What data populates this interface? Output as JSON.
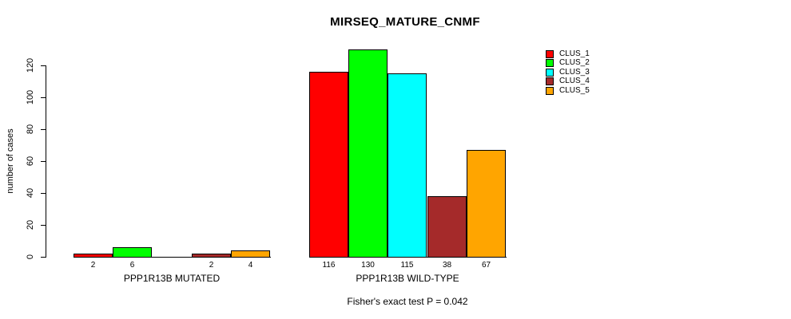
{
  "chart_data": {
    "type": "bar",
    "title": "MIRSEQ_MATURE_CNMF",
    "ylabel": "number of cases",
    "yticks": [
      0,
      20,
      40,
      60,
      80,
      100,
      120
    ],
    "ylim": [
      0,
      130
    ],
    "grid": false,
    "legend": {
      "position": "top-right",
      "entries": [
        {
          "label": "CLUS_1",
          "color": "#FF0000"
        },
        {
          "label": "CLUS_2",
          "color": "#00FF00"
        },
        {
          "label": "CLUS_3",
          "color": "#00FFFF"
        },
        {
          "label": "CLUS_4",
          "color": "#A52A2A"
        },
        {
          "label": "CLUS_5",
          "color": "#FFA500"
        }
      ]
    },
    "groups": [
      {
        "label": "PPP1R13B MUTATED",
        "values": [
          2,
          6,
          0,
          2,
          4
        ],
        "value_labels": [
          "2",
          "6",
          "",
          "2",
          "4"
        ]
      },
      {
        "label": "PPP1R13B WILD-TYPE",
        "values": [
          116,
          130,
          115,
          38,
          67
        ],
        "value_labels": [
          "116",
          "130",
          "115",
          "38",
          "67"
        ]
      }
    ],
    "caption": "Fisher's exact test P = 0.042"
  }
}
